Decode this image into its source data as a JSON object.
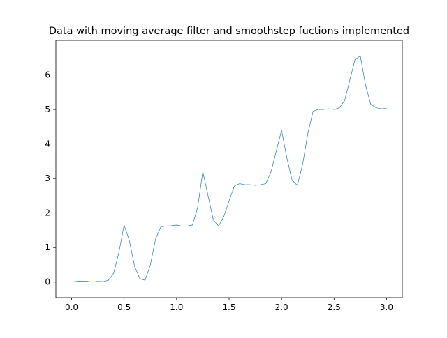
{
  "chart_data": {
    "type": "line",
    "title": "Data with moving average filter and smoothstep fuctions implemented",
    "xlabel": "",
    "ylabel": "",
    "xlim": [
      -0.15,
      3.15
    ],
    "ylim": [
      -0.45,
      7.0
    ],
    "xticks": [
      0.0,
      0.5,
      1.0,
      1.5,
      2.0,
      2.5,
      3.0
    ],
    "xtick_labels": [
      "0.0",
      "0.5",
      "1.0",
      "1.5",
      "2.0",
      "2.5",
      "3.0"
    ],
    "yticks": [
      0,
      1,
      2,
      3,
      4,
      5,
      6
    ],
    "ytick_labels": [
      "0",
      "1",
      "2",
      "3",
      "4",
      "5",
      "6"
    ],
    "grid": false,
    "legend": "none",
    "line_color": "#1f77b4",
    "series": [
      {
        "x": [
          0.0,
          0.05,
          0.1,
          0.15,
          0.2,
          0.25,
          0.3,
          0.35,
          0.4,
          0.45,
          0.5,
          0.55,
          0.6,
          0.65,
          0.7,
          0.75,
          0.8,
          0.85,
          0.9,
          0.95,
          1.0,
          1.05,
          1.1,
          1.15,
          1.2,
          1.25,
          1.3,
          1.35,
          1.4,
          1.45,
          1.5,
          1.55,
          1.6,
          1.65,
          1.7,
          1.75,
          1.8,
          1.85,
          1.9,
          1.95,
          2.0,
          2.05,
          2.1,
          2.15,
          2.2,
          2.25,
          2.3,
          2.35,
          2.4,
          2.45,
          2.5,
          2.55,
          2.6,
          2.65,
          2.7,
          2.75,
          2.8,
          2.85,
          2.9,
          2.95,
          3.0
        ],
        "y": [
          0.0,
          0.02,
          0.03,
          0.02,
          0.0,
          0.02,
          0.01,
          0.05,
          0.25,
          0.85,
          1.65,
          1.2,
          0.45,
          0.1,
          0.05,
          0.5,
          1.25,
          1.6,
          1.62,
          1.63,
          1.65,
          1.62,
          1.62,
          1.65,
          2.15,
          3.2,
          2.5,
          1.8,
          1.62,
          1.9,
          2.35,
          2.78,
          2.85,
          2.82,
          2.82,
          2.8,
          2.82,
          2.85,
          3.2,
          3.8,
          4.4,
          3.6,
          2.95,
          2.8,
          3.4,
          4.3,
          4.95,
          5.0,
          5.0,
          5.02,
          5.0,
          5.05,
          5.25,
          5.85,
          6.45,
          6.55,
          5.7,
          5.15,
          5.05,
          5.02,
          5.03
        ]
      }
    ]
  }
}
